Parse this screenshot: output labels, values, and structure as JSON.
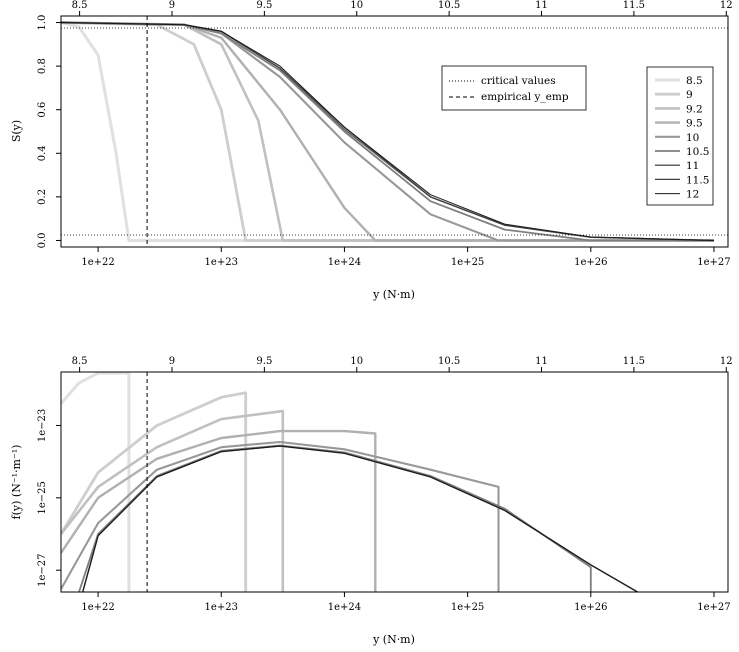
{
  "chart_data": [
    {
      "type": "line",
      "panel": "top",
      "title": "",
      "xlabel": "y (N·m)",
      "ylabel": "S(y)",
      "x_scale": "log",
      "xlim": [
        5e+21,
        1.3e+27
      ],
      "ylim": [
        -0.03,
        1.03
      ],
      "x_ticks": [
        "1e+22",
        "1e+23",
        "1e+24",
        "1e+25",
        "1e+26",
        "1e+27"
      ],
      "y_ticks": [
        "0.0",
        "0.2",
        "0.4",
        "0.6",
        "0.8",
        "1.0"
      ],
      "top_axis_ticks": [
        "8.5",
        "9",
        "9.5",
        "10",
        "10.5",
        "11",
        "11.5",
        "12"
      ],
      "reference_lines": {
        "critical_values": [
          0.025,
          0.975
        ],
        "empirical_y_emp": 2.5e+22
      },
      "legend_lines": {
        "position": "top-center",
        "entries": [
          "critical values",
          "empirical y_emp"
        ]
      },
      "legend_series": {
        "position": "top-right"
      },
      "series": [
        {
          "name": "8.5",
          "color": "#e0e0e0",
          "width": 3.0,
          "points": [
            [
              5e+21,
              1.0
            ],
            [
              7e+21,
              0.98
            ],
            [
              1e+22,
              0.85
            ],
            [
              1.4e+22,
              0.4
            ],
            [
              1.78e+22,
              0.0
            ]
          ]
        },
        {
          "name": "9",
          "color": "#cecece",
          "width": 2.8,
          "points": [
            [
              5e+21,
              1.0
            ],
            [
              3e+22,
              0.99
            ],
            [
              6e+22,
              0.9
            ],
            [
              1e+23,
              0.6
            ],
            [
              1.58e+23,
              0.0
            ]
          ]
        },
        {
          "name": "9.2",
          "color": "#c0c0c0",
          "width": 2.6,
          "points": [
            [
              5e+21,
              1.0
            ],
            [
              5e+22,
              0.99
            ],
            [
              1e+23,
              0.9
            ],
            [
              2e+23,
              0.55
            ],
            [
              3.16e+23,
              0.0
            ]
          ]
        },
        {
          "name": "9.5",
          "color": "#b0b0b0",
          "width": 2.4,
          "points": [
            [
              5e+21,
              1.0
            ],
            [
              5e+22,
              0.99
            ],
            [
              1e+23,
              0.93
            ],
            [
              3e+23,
              0.6
            ],
            [
              1e+24,
              0.15
            ],
            [
              1.78e+24,
              0.0
            ]
          ]
        },
        {
          "name": "10",
          "color": "#989898",
          "width": 2.1,
          "points": [
            [
              5e+21,
              1.0
            ],
            [
              5e+22,
              0.99
            ],
            [
              1e+23,
              0.95
            ],
            [
              3e+23,
              0.75
            ],
            [
              1e+24,
              0.45
            ],
            [
              5e+24,
              0.12
            ],
            [
              1.78e+25,
              0.0
            ]
          ]
        },
        {
          "name": "10.5",
          "color": "#7e7e7e",
          "width": 1.8,
          "points": [
            [
              5e+21,
              1.0
            ],
            [
              5e+22,
              0.99
            ],
            [
              1e+23,
              0.95
            ],
            [
              3e+23,
              0.78
            ],
            [
              1e+24,
              0.5
            ],
            [
              5e+24,
              0.18
            ],
            [
              2e+25,
              0.05
            ],
            [
              1e+26,
              0.0
            ]
          ]
        },
        {
          "name": "11",
          "color": "#606060",
          "width": 1.5,
          "points": [
            [
              5e+21,
              1.0
            ],
            [
              5e+22,
              0.99
            ],
            [
              1e+23,
              0.96
            ],
            [
              3e+23,
              0.79
            ],
            [
              1e+24,
              0.51
            ],
            [
              5e+24,
              0.2
            ],
            [
              2e+25,
              0.07
            ],
            [
              1e+26,
              0.015
            ],
            [
              1e+27,
              0.0
            ]
          ]
        },
        {
          "name": "11.5",
          "color": "#404040",
          "width": 1.2,
          "points": [
            [
              5e+21,
              1.0
            ],
            [
              5e+22,
              0.99
            ],
            [
              1e+23,
              0.96
            ],
            [
              3e+23,
              0.79
            ],
            [
              1e+24,
              0.52
            ],
            [
              5e+24,
              0.2
            ],
            [
              2e+25,
              0.07
            ],
            [
              1e+26,
              0.015
            ],
            [
              1e+27,
              0.0
            ]
          ]
        },
        {
          "name": "12",
          "color": "#1a1a1a",
          "width": 1.0,
          "points": [
            [
              5e+21,
              1.0
            ],
            [
              5e+22,
              0.99
            ],
            [
              1e+23,
              0.96
            ],
            [
              3e+23,
              0.8
            ],
            [
              1e+24,
              0.52
            ],
            [
              5e+24,
              0.21
            ],
            [
              2e+25,
              0.075
            ],
            [
              1e+26,
              0.016
            ],
            [
              1e+27,
              0.0
            ]
          ]
        }
      ]
    },
    {
      "type": "line",
      "panel": "bottom",
      "title": "",
      "xlabel": "y (N·m)",
      "ylabel": "f(y) (N⁻¹·m⁻¹)",
      "x_scale": "log",
      "y_scale": "log",
      "xlim": [
        5e+21,
        1.3e+27
      ],
      "ylim": [
        2.5e-28,
        3e-22
      ],
      "x_ticks": [
        "1e+22",
        "1e+23",
        "1e+24",
        "1e+25",
        "1e+26",
        "1e+27"
      ],
      "y_ticks": [
        "1e−27",
        "1e−25",
        "1e−23"
      ],
      "top_axis_ticks": [
        "8.5",
        "9",
        "9.5",
        "10",
        "10.5",
        "11",
        "11.5",
        "12"
      ],
      "reference_lines": {
        "empirical_y_emp": 2.5e+22
      },
      "series": [
        {
          "name": "8.5",
          "color": "#e0e0e0",
          "width": 3.0,
          "points": [
            [
              5e+21,
              4e-23
            ],
            [
              7e+21,
              1.5e-22
            ],
            [
              1e+22,
              2.8e-22
            ],
            [
              1.78e+22,
              2.8e-22
            ]
          ],
          "drop_to_floor": true
        },
        {
          "name": "9",
          "color": "#cecece",
          "width": 2.8,
          "points": [
            [
              5e+21,
              1e-26
            ],
            [
              1e+22,
              5e-25
            ],
            [
              3e+22,
              1e-23
            ],
            [
              1e+23,
              6e-23
            ],
            [
              1.58e+23,
              8e-23
            ]
          ],
          "drop_to_floor": true
        },
        {
          "name": "9.2",
          "color": "#c0c0c0",
          "width": 2.6,
          "points": [
            [
              5e+21,
              1e-26
            ],
            [
              1e+22,
              2e-25
            ],
            [
              3e+22,
              2.5e-24
            ],
            [
              1e+23,
              1.5e-23
            ],
            [
              3.16e+23,
              2.5e-23
            ]
          ],
          "drop_to_floor": true
        },
        {
          "name": "9.5",
          "color": "#b0b0b0",
          "width": 2.4,
          "points": [
            [
              5e+21,
              3e-27
            ],
            [
              1e+22,
              1e-25
            ],
            [
              3e+22,
              1.2e-24
            ],
            [
              1e+23,
              4.5e-24
            ],
            [
              3e+23,
              7e-24
            ],
            [
              1e+24,
              7e-24
            ],
            [
              1.78e+24,
              6e-24
            ]
          ],
          "drop_to_floor": true
        },
        {
          "name": "10",
          "color": "#989898",
          "width": 2.1,
          "points": [
            [
              5e+21,
              3e-28
            ],
            [
              1e+22,
              2e-26
            ],
            [
              3e+22,
              6e-25
            ],
            [
              1e+23,
              2.5e-24
            ],
            [
              3e+23,
              3.5e-24
            ],
            [
              1e+24,
              2.2e-24
            ],
            [
              5e+24,
              6e-25
            ],
            [
              1.78e+25,
              2e-25
            ]
          ],
          "drop_to_floor": true
        },
        {
          "name": "10.5",
          "color": "#7e7e7e",
          "width": 1.8,
          "points": [
            [
              7e+21,
              2.5e-28
            ],
            [
              1e+22,
              1e-26
            ],
            [
              3e+22,
              4e-25
            ],
            [
              1e+23,
              2e-24
            ],
            [
              3e+23,
              2.8e-24
            ],
            [
              1e+24,
              1.8e-24
            ],
            [
              5e+24,
              4e-25
            ],
            [
              2e+25,
              5e-26
            ],
            [
              1e+26,
              1.2e-27
            ]
          ],
          "drop_to_floor": true
        },
        {
          "name": "11",
          "color": "#606060",
          "width": 1.5,
          "points": [
            [
              7.5e+21,
              2.5e-28
            ],
            [
              1e+22,
              9e-27
            ],
            [
              3e+22,
              3.8e-25
            ],
            [
              1e+23,
              1.9e-24
            ],
            [
              3e+23,
              2.7e-24
            ],
            [
              1e+24,
              1.7e-24
            ],
            [
              5e+24,
              3.8e-25
            ],
            [
              2e+25,
              4.5e-26
            ],
            [
              1e+26,
              1.4e-27
            ],
            [
              2.4e+26,
              2.5e-28
            ]
          ]
        },
        {
          "name": "11.5",
          "color": "#404040",
          "width": 1.2,
          "points": [
            [
              7.5e+21,
              2.5e-28
            ],
            [
              1e+22,
              9e-27
            ],
            [
              3e+22,
              3.8e-25
            ],
            [
              1e+23,
              1.9e-24
            ],
            [
              3e+23,
              2.7e-24
            ],
            [
              1e+24,
              1.7e-24
            ],
            [
              5e+24,
              3.8e-25
            ],
            [
              2e+25,
              4.5e-26
            ],
            [
              1e+26,
              1.4e-27
            ],
            [
              2.4e+26,
              2.5e-28
            ]
          ]
        },
        {
          "name": "12",
          "color": "#1a1a1a",
          "width": 1.0,
          "points": [
            [
              7.5e+21,
              2.5e-28
            ],
            [
              1e+22,
              9e-27
            ],
            [
              3e+22,
              3.8e-25
            ],
            [
              1e+23,
              1.9e-24
            ],
            [
              3e+23,
              2.7e-24
            ],
            [
              1e+24,
              1.7e-24
            ],
            [
              5e+24,
              3.8e-25
            ],
            [
              2e+25,
              4.5e-26
            ],
            [
              1e+26,
              1.4e-27
            ],
            [
              2.4e+26,
              2.5e-28
            ]
          ]
        }
      ]
    }
  ]
}
